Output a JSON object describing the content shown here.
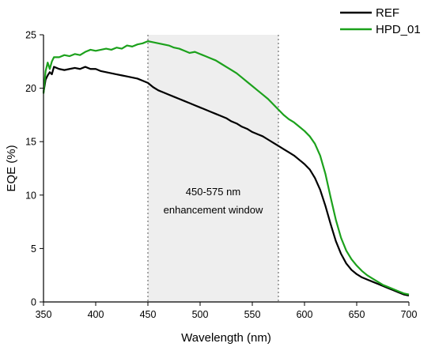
{
  "chart_data": {
    "type": "line",
    "xlabel": "Wavelength (nm)",
    "ylabel": "EQE (%)",
    "xlim": [
      350,
      700
    ],
    "ylim": [
      0,
      25
    ],
    "xticks": [
      350,
      400,
      450,
      500,
      550,
      600,
      650,
      700
    ],
    "yticks": [
      0,
      5,
      10,
      15,
      20,
      25
    ],
    "grid": false,
    "legend_position": "top-right",
    "series": [
      {
        "name": "REF",
        "color": "#000000",
        "x": [
          350,
          352,
          354,
          356,
          358,
          360,
          365,
          370,
          375,
          380,
          385,
          390,
          395,
          400,
          405,
          410,
          415,
          420,
          425,
          430,
          435,
          440,
          445,
          450,
          455,
          460,
          465,
          470,
          475,
          480,
          485,
          490,
          495,
          500,
          505,
          510,
          515,
          520,
          525,
          530,
          535,
          540,
          545,
          550,
          555,
          560,
          565,
          570,
          575,
          580,
          585,
          590,
          595,
          600,
          605,
          610,
          615,
          620,
          625,
          630,
          635,
          640,
          645,
          650,
          655,
          660,
          665,
          670,
          675,
          680,
          685,
          690,
          695,
          700
        ],
        "y": [
          19.6,
          20.8,
          21.2,
          21.5,
          21.3,
          22.0,
          21.8,
          21.7,
          21.8,
          21.9,
          21.8,
          22.0,
          21.8,
          21.8,
          21.6,
          21.5,
          21.4,
          21.3,
          21.2,
          21.1,
          21.0,
          20.9,
          20.7,
          20.5,
          20.1,
          19.8,
          19.6,
          19.4,
          19.2,
          19.0,
          18.8,
          18.6,
          18.4,
          18.2,
          18.0,
          17.8,
          17.6,
          17.4,
          17.2,
          16.9,
          16.7,
          16.4,
          16.2,
          15.9,
          15.7,
          15.5,
          15.2,
          14.9,
          14.6,
          14.3,
          14.0,
          13.7,
          13.3,
          12.9,
          12.4,
          11.6,
          10.5,
          9.0,
          7.3,
          5.7,
          4.5,
          3.6,
          3.0,
          2.6,
          2.3,
          2.1,
          1.9,
          1.7,
          1.5,
          1.3,
          1.1,
          0.9,
          0.7,
          0.6
        ]
      },
      {
        "name": "HPD_01",
        "color": "#1ca11c",
        "x": [
          350,
          352,
          354,
          356,
          358,
          360,
          365,
          370,
          375,
          380,
          385,
          390,
          395,
          400,
          405,
          410,
          415,
          420,
          425,
          430,
          435,
          440,
          445,
          450,
          455,
          460,
          465,
          470,
          475,
          480,
          485,
          490,
          495,
          500,
          505,
          510,
          515,
          520,
          525,
          530,
          535,
          540,
          545,
          550,
          555,
          560,
          565,
          570,
          575,
          580,
          585,
          590,
          595,
          600,
          605,
          610,
          615,
          620,
          625,
          630,
          635,
          640,
          645,
          650,
          655,
          660,
          665,
          670,
          675,
          680,
          685,
          690,
          695,
          700
        ],
        "y": [
          19.5,
          21.6,
          22.4,
          21.8,
          22.5,
          22.9,
          22.9,
          23.1,
          23.0,
          23.2,
          23.1,
          23.4,
          23.6,
          23.5,
          23.6,
          23.7,
          23.6,
          23.8,
          23.7,
          24.0,
          23.9,
          24.1,
          24.2,
          24.4,
          24.3,
          24.2,
          24.1,
          24.0,
          23.8,
          23.7,
          23.5,
          23.3,
          23.4,
          23.2,
          23.0,
          22.8,
          22.6,
          22.3,
          22.0,
          21.7,
          21.4,
          21.0,
          20.6,
          20.2,
          19.8,
          19.4,
          19.0,
          18.5,
          18.0,
          17.5,
          17.1,
          16.8,
          16.4,
          16.0,
          15.5,
          14.8,
          13.7,
          12.0,
          9.8,
          7.7,
          6.0,
          4.8,
          4.0,
          3.4,
          2.9,
          2.5,
          2.2,
          1.9,
          1.6,
          1.4,
          1.2,
          1.0,
          0.8,
          0.7
        ]
      }
    ],
    "shaded_region": {
      "x_start": 450,
      "x_end": 575,
      "label_line1": "450-575 nm",
      "label_line2": "enhancement window"
    }
  }
}
